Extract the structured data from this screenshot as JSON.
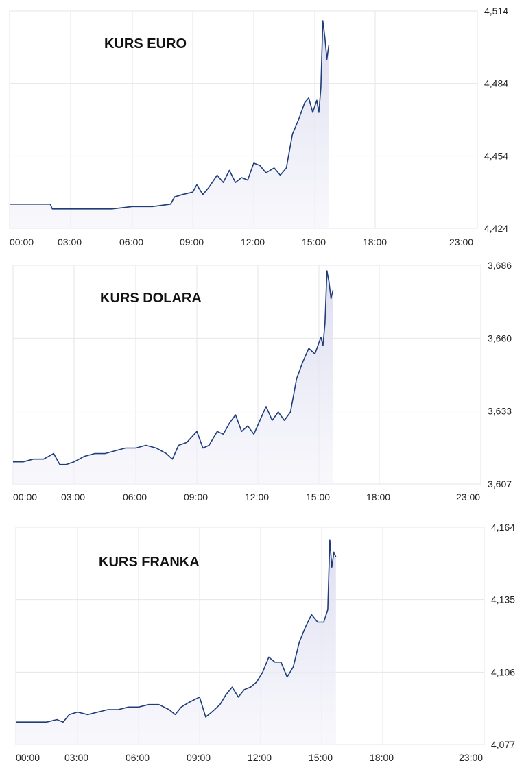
{
  "chart_data": [
    {
      "type": "line",
      "title": "KURS EURO",
      "x_ticks": [
        "00:00",
        "03:00",
        "06:00",
        "09:00",
        "12:00",
        "15:00",
        "18:00",
        "23:00"
      ],
      "y_ticks": [
        "4,514",
        "4,484",
        "4,454",
        "4,424"
      ],
      "ylim": [
        4.424,
        4.514
      ],
      "xlim_hours": [
        0,
        23
      ],
      "grid": true,
      "series": [
        {
          "x": [
            0,
            0.5,
            1,
            1.5,
            2,
            2.1,
            2.5,
            3,
            4,
            5,
            6,
            7,
            7.9,
            8.1,
            8.5,
            9,
            9.2,
            9.5,
            9.8,
            10.2,
            10.5,
            10.8,
            11.1,
            11.4,
            11.7,
            12,
            12.3,
            12.6,
            13,
            13.3,
            13.6,
            13.9,
            14.2,
            14.5,
            14.7,
            14.9,
            15.1,
            15.2,
            15.3,
            15.4,
            15.5,
            15.6,
            15.7
          ],
          "y": [
            4.434,
            4.434,
            4.434,
            4.434,
            4.434,
            4.432,
            4.432,
            4.432,
            4.432,
            4.432,
            4.433,
            4.433,
            4.434,
            4.437,
            4.438,
            4.439,
            4.442,
            4.438,
            4.441,
            4.446,
            4.443,
            4.448,
            4.443,
            4.445,
            4.444,
            4.451,
            4.45,
            4.447,
            4.449,
            4.446,
            4.449,
            4.463,
            4.469,
            4.476,
            4.478,
            4.472,
            4.477,
            4.472,
            4.482,
            4.51,
            4.503,
            4.494,
            4.5
          ]
        }
      ]
    },
    {
      "type": "line",
      "title": "KURS DOLARA",
      "x_ticks": [
        "00:00",
        "03:00",
        "06:00",
        "09:00",
        "12:00",
        "15:00",
        "18:00",
        "23:00"
      ],
      "y_ticks": [
        "3,686",
        "3,660",
        "3,633",
        "3,607"
      ],
      "ylim": [
        3.607,
        3.686
      ],
      "xlim_hours": [
        0,
        23
      ],
      "grid": true,
      "series": [
        {
          "x": [
            0,
            0.5,
            1,
            1.5,
            2,
            2.3,
            2.6,
            3,
            3.5,
            4,
            4.5,
            5,
            5.5,
            6,
            6.5,
            7,
            7.5,
            7.8,
            8.1,
            8.5,
            9,
            9.3,
            9.6,
            10,
            10.3,
            10.6,
            10.9,
            11.2,
            11.5,
            11.8,
            12.1,
            12.4,
            12.7,
            13,
            13.3,
            13.6,
            13.9,
            14.2,
            14.5,
            14.8,
            15.1,
            15.2,
            15.3,
            15.4,
            15.5,
            15.6,
            15.7
          ],
          "y": [
            3.615,
            3.615,
            3.616,
            3.616,
            3.618,
            3.614,
            3.614,
            3.615,
            3.617,
            3.618,
            3.618,
            3.619,
            3.62,
            3.62,
            3.621,
            3.62,
            3.618,
            3.616,
            3.621,
            3.622,
            3.626,
            3.62,
            3.621,
            3.626,
            3.625,
            3.629,
            3.632,
            3.626,
            3.628,
            3.625,
            3.63,
            3.635,
            3.63,
            3.633,
            3.63,
            3.633,
            3.645,
            3.651,
            3.656,
            3.654,
            3.66,
            3.657,
            3.665,
            3.684,
            3.68,
            3.674,
            3.677
          ]
        }
      ]
    },
    {
      "type": "line",
      "title": "KURS FRANKA",
      "x_ticks": [
        "00:00",
        "03:00",
        "06:00",
        "09:00",
        "12:00",
        "15:00",
        "18:00",
        "23:00"
      ],
      "y_ticks": [
        "4,164",
        "4,135",
        "4,106",
        "4,077"
      ],
      "ylim": [
        4.077,
        4.164
      ],
      "xlim_hours": [
        0,
        23
      ],
      "grid": true,
      "series": [
        {
          "x": [
            0,
            0.5,
            1,
            1.5,
            2,
            2.3,
            2.6,
            3,
            3.5,
            4,
            4.5,
            5,
            5.5,
            6,
            6.5,
            7,
            7.5,
            7.8,
            8.1,
            8.5,
            9,
            9.3,
            9.6,
            10,
            10.3,
            10.6,
            10.9,
            11.2,
            11.5,
            11.8,
            12.1,
            12.4,
            12.7,
            13,
            13.3,
            13.6,
            13.9,
            14.2,
            14.5,
            14.8,
            15.1,
            15.3,
            15.4,
            15.5,
            15.6,
            15.7
          ],
          "y": [
            4.086,
            4.086,
            4.086,
            4.086,
            4.087,
            4.086,
            4.089,
            4.09,
            4.089,
            4.09,
            4.091,
            4.091,
            4.092,
            4.092,
            4.093,
            4.093,
            4.091,
            4.089,
            4.092,
            4.094,
            4.096,
            4.088,
            4.09,
            4.093,
            4.097,
            4.1,
            4.096,
            4.099,
            4.1,
            4.102,
            4.106,
            4.112,
            4.11,
            4.11,
            4.104,
            4.108,
            4.118,
            4.124,
            4.129,
            4.126,
            4.126,
            4.131,
            4.159,
            4.148,
            4.154,
            4.152
          ]
        }
      ]
    }
  ]
}
